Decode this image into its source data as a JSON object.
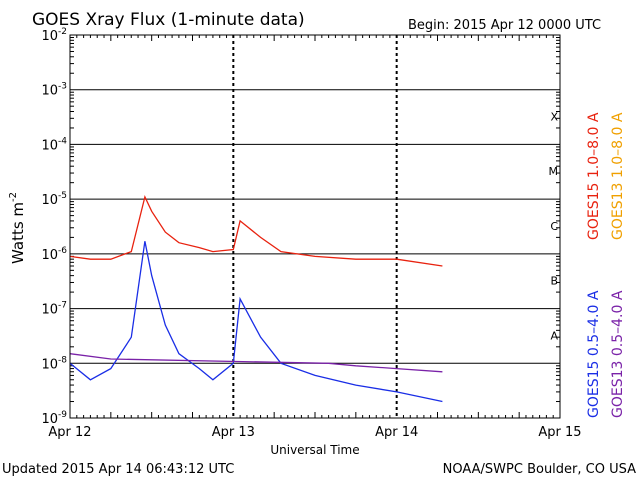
{
  "chart_data": {
    "type": "line",
    "title": "GOES Xray Flux (1-minute data)",
    "begin_label": "Begin:  2015 Apr 12 0000 UTC",
    "xlabel": "Universal Time",
    "ylabel_main": "Watts m",
    "ylabel_exp": "-2",
    "y_scale": "log",
    "ylim": [
      1e-09,
      0.01
    ],
    "y_ticks": [
      {
        "exp": "-9",
        "value": 1e-09
      },
      {
        "exp": "-8",
        "value": 1e-08
      },
      {
        "exp": "-7",
        "value": 1e-07
      },
      {
        "exp": "-6",
        "value": 1e-06
      },
      {
        "exp": "-5",
        "value": 1e-05
      },
      {
        "exp": "-4",
        "value": 0.0001
      },
      {
        "exp": "-3",
        "value": 0.001
      },
      {
        "exp": "-2",
        "value": 0.01
      }
    ],
    "x_range_days": [
      "2015-04-12",
      "2015-04-15"
    ],
    "x_ticks": [
      {
        "label": "Apr 12",
        "date": "2015-04-12"
      },
      {
        "label": "Apr 13",
        "date": "2015-04-13"
      },
      {
        "label": "Apr 14",
        "date": "2015-04-14"
      },
      {
        "label": "Apr 15",
        "date": "2015-04-15"
      }
    ],
    "flare_classes": [
      {
        "label": "X",
        "value": 0.0001
      },
      {
        "label": "M",
        "value": 1e-05
      },
      {
        "label": "C",
        "value": 1e-06
      },
      {
        "label": "B",
        "value": 1e-07
      },
      {
        "label": "A",
        "value": 1e-08
      }
    ],
    "legend": [
      {
        "label": "GOES15 1.0–8.0 A",
        "color": "#e8220f"
      },
      {
        "label": "GOES13 1.0–8.0 A",
        "color": "#f0a000"
      },
      {
        "label": "GOES15 0.5–4.0 A",
        "color": "#1a2ee6"
      },
      {
        "label": "GOES13 0.5–4.0 A",
        "color": "#7a22a8"
      }
    ],
    "series": [
      {
        "name": "GOES15 1.0–8.0 A",
        "color": "#e8220f",
        "x": [
          "2015-04-12T00:00",
          "2015-04-12T03:00",
          "2015-04-12T06:00",
          "2015-04-12T09:00",
          "2015-04-12T11:00",
          "2015-04-12T12:00",
          "2015-04-12T14:00",
          "2015-04-12T16:00",
          "2015-04-12T19:00",
          "2015-04-12T21:00",
          "2015-04-13T00:00",
          "2015-04-13T01:00",
          "2015-04-13T04:00",
          "2015-04-13T07:00",
          "2015-04-13T12:00",
          "2015-04-13T18:00",
          "2015-04-14T00:00",
          "2015-04-14T06:43"
        ],
        "y": [
          9e-07,
          8e-07,
          8e-07,
          1.1e-06,
          1.1e-05,
          6e-06,
          2.5e-06,
          1.6e-06,
          1.3e-06,
          1.1e-06,
          1.2e-06,
          4e-06,
          2e-06,
          1.1e-06,
          9e-07,
          8e-07,
          8e-07,
          6e-07
        ]
      },
      {
        "name": "GOES15 0.5–4.0 A",
        "color": "#1a2ee6",
        "x": [
          "2015-04-12T00:00",
          "2015-04-12T03:00",
          "2015-04-12T06:00",
          "2015-04-12T09:00",
          "2015-04-12T11:00",
          "2015-04-12T12:00",
          "2015-04-12T14:00",
          "2015-04-12T16:00",
          "2015-04-12T19:00",
          "2015-04-12T21:00",
          "2015-04-13T00:00",
          "2015-04-13T01:00",
          "2015-04-13T04:00",
          "2015-04-13T07:00",
          "2015-04-13T12:00",
          "2015-04-13T18:00",
          "2015-04-14T00:00",
          "2015-04-14T06:43"
        ],
        "y": [
          1e-08,
          5e-09,
          8e-09,
          3e-08,
          1.7e-06,
          4e-07,
          5e-08,
          1.5e-08,
          8e-09,
          5e-09,
          1e-08,
          1.5e-07,
          3e-08,
          1e-08,
          6e-09,
          4e-09,
          3e-09,
          2e-09
        ]
      },
      {
        "name": "GOES13 0.5–4.0 A",
        "color": "#7a22a8",
        "x": [
          "2015-04-12T00:00",
          "2015-04-12T06:00",
          "2015-04-13T14:00",
          "2015-04-13T18:00",
          "2015-04-14T00:00",
          "2015-04-14T06:43"
        ],
        "y": [
          1.5e-08,
          1.2e-08,
          1e-08,
          9e-09,
          8e-09,
          7e-09
        ]
      }
    ],
    "grid": true,
    "legend_placement": "right, vertical"
  },
  "footer": {
    "updated": "Updated 2015 Apr 14 06:43:12 UTC",
    "source": "NOAA/SWPC Boulder, CO USA"
  }
}
